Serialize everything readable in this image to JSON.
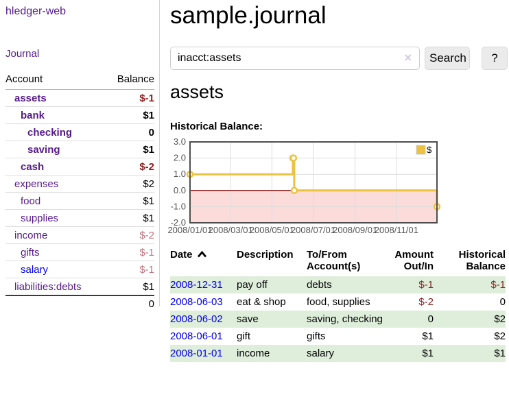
{
  "app": {
    "brand": "hledger-web"
  },
  "sidebar": {
    "journal_link": "Journal",
    "accounts": {
      "header": {
        "account": "Account",
        "balance": "Balance"
      },
      "rows": [
        {
          "name": "assets",
          "indent": 1,
          "bold": true,
          "link": "purple",
          "balance": "$-1",
          "balance_style": "neg"
        },
        {
          "name": "bank",
          "indent": 2,
          "bold": true,
          "link": "purple",
          "balance": "$1",
          "balance_style": "pos"
        },
        {
          "name": "checking",
          "indent": 3,
          "bold": true,
          "link": "purple",
          "balance": "0",
          "balance_style": "pos"
        },
        {
          "name": "saving",
          "indent": 3,
          "bold": true,
          "link": "purple",
          "balance": "$1",
          "balance_style": "pos"
        },
        {
          "name": "cash",
          "indent": 2,
          "bold": true,
          "link": "purple",
          "balance": "$-2",
          "balance_style": "neg"
        },
        {
          "name": "expenses",
          "indent": 1,
          "bold": false,
          "link": "purple",
          "balance": "$2",
          "balance_style": "pos"
        },
        {
          "name": "food",
          "indent": 2,
          "bold": false,
          "link": "purple",
          "balance": "$1",
          "balance_style": "pos"
        },
        {
          "name": "supplies",
          "indent": 2,
          "bold": false,
          "link": "purple",
          "balance": "$1",
          "balance_style": "pos"
        },
        {
          "name": "income",
          "indent": 1,
          "bold": false,
          "link": "purple",
          "balance": "$-2",
          "balance_style": "neg-dim"
        },
        {
          "name": "gifts",
          "indent": 2,
          "bold": false,
          "link": "purple",
          "balance": "$-1",
          "balance_style": "neg-dim"
        },
        {
          "name": "salary",
          "indent": 2,
          "bold": false,
          "link": "blue",
          "balance": "$-1",
          "balance_style": "neg-dim"
        },
        {
          "name": "liabilities:debts",
          "indent": 1,
          "bold": false,
          "link": "purple",
          "balance": "$1",
          "balance_style": "pos"
        }
      ],
      "total": "0"
    }
  },
  "header": {
    "title": "sample.journal"
  },
  "search": {
    "value": "inacct:assets",
    "clear_icon": "×",
    "button": "Search",
    "help": "?"
  },
  "account_view": {
    "title": "assets",
    "chart_heading": "Historical Balance:"
  },
  "chart_data": {
    "type": "line",
    "line_style": "steps",
    "title": "Historical Balance",
    "x_range": [
      "2008-01-01",
      "2008-12-31"
    ],
    "ylim": [
      -2,
      3
    ],
    "yticks": [
      {
        "value": 3,
        "label": "3.0"
      },
      {
        "value": 2,
        "label": "2.0"
      },
      {
        "value": 1,
        "label": "1.0"
      },
      {
        "value": 0,
        "label": "0.0"
      },
      {
        "value": -1,
        "label": "-1.0"
      },
      {
        "value": -2,
        "label": "-2.0"
      }
    ],
    "xticks": [
      {
        "date": "2008-01-01",
        "label": "2008/01/01"
      },
      {
        "date": "2008-03-01",
        "label": "2008/03/01"
      },
      {
        "date": "2008-05-01",
        "label": "2008/05/01"
      },
      {
        "date": "2008-07-01",
        "label": "2008/07/01"
      },
      {
        "date": "2008-09-01",
        "label": "2008/09/01"
      },
      {
        "date": "2008-11-01",
        "label": "2008/11/01"
      }
    ],
    "series": [
      {
        "name": "$",
        "color": "#edc240",
        "points": [
          {
            "date": "2008-01-01",
            "value": 1
          },
          {
            "date": "2008-06-01",
            "value": 2
          },
          {
            "date": "2008-06-02",
            "value": 2
          },
          {
            "date": "2008-06-03",
            "value": 0
          },
          {
            "date": "2008-12-31",
            "value": -1
          }
        ]
      }
    ],
    "legend": {
      "label": "$",
      "position": "top-right"
    },
    "colors": {
      "grid": "#dcdcdc",
      "border": "#4d4d4d",
      "zero_line": "#8e1b1b",
      "negative_region": "#fcdbdb",
      "tick_text": "#545454"
    }
  },
  "transactions": {
    "headers": {
      "date": "Date",
      "description": "Description",
      "accounts": "To/From Account(s)",
      "amount": "Amount Out/In",
      "balance": "Historical Balance"
    },
    "rows": [
      {
        "date": "2008-12-31",
        "description": "pay off",
        "accounts": "debts",
        "amount": "$-1",
        "amount_negative": true,
        "balance": "$-1",
        "balance_negative": true
      },
      {
        "date": "2008-06-03",
        "description": "eat & shop",
        "accounts": "food, supplies",
        "amount": "$-2",
        "amount_negative": true,
        "balance": "0",
        "balance_negative": false
      },
      {
        "date": "2008-06-02",
        "description": "save",
        "accounts": "saving, checking",
        "amount": "0",
        "amount_negative": false,
        "balance": "$2",
        "balance_negative": false
      },
      {
        "date": "2008-06-01",
        "description": "gift",
        "accounts": "gifts",
        "amount": "$1",
        "amount_negative": false,
        "balance": "$2",
        "balance_negative": false
      },
      {
        "date": "2008-01-01",
        "description": "income",
        "accounts": "salary",
        "amount": "$1",
        "amount_negative": false,
        "balance": "$1",
        "balance_negative": false
      }
    ]
  }
}
